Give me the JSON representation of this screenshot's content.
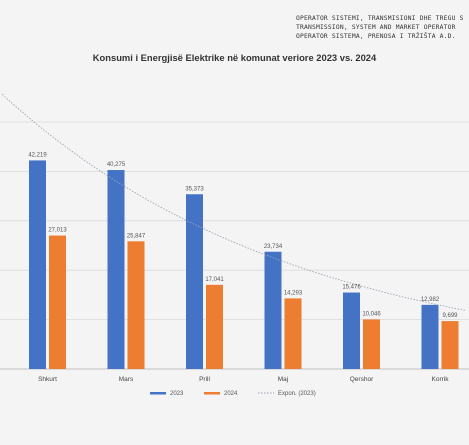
{
  "header": {
    "lines": [
      "OPERATOR SISTEMI, TRANSMISIONI DHE TREGU S",
      "TRANSMISSION, SYSTEM AND MARKET OPERATOR",
      "OPERATOR SISTEMA, PRENOSA I TRŽIŠTA A.D."
    ]
  },
  "chart_data": {
    "type": "bar",
    "title": "Konsumi i Energjisë Elektrike në komunat veriore 2023 vs. 2024",
    "xlabel": "",
    "ylabel": "",
    "categories": [
      "Shkurt",
      "Mars",
      "Prill",
      "Maj",
      "Qershor",
      "Korrik"
    ],
    "series": [
      {
        "name": "2023",
        "color": "#4472c4",
        "values": [
          42219,
          40275,
          35373,
          23734,
          15476,
          12982
        ]
      },
      {
        "name": "2024",
        "color": "#ed7d31",
        "values": [
          27013,
          25847,
          17041,
          14293,
          10046,
          9699
        ]
      }
    ],
    "data_labels": [
      [
        "42,219",
        "40,275",
        "35,373",
        "23,734",
        "15,476",
        "12,982"
      ],
      [
        "27,013",
        "25,847",
        "17,041",
        "14,293",
        "10,046",
        "9,699"
      ]
    ],
    "trendline": {
      "name": "Expon. (2023)",
      "series": "2023",
      "type": "exponential",
      "color": "#9aa6b5"
    },
    "ylim": [
      0,
      50000
    ],
    "grid": true,
    "legend_position": "bottom"
  }
}
